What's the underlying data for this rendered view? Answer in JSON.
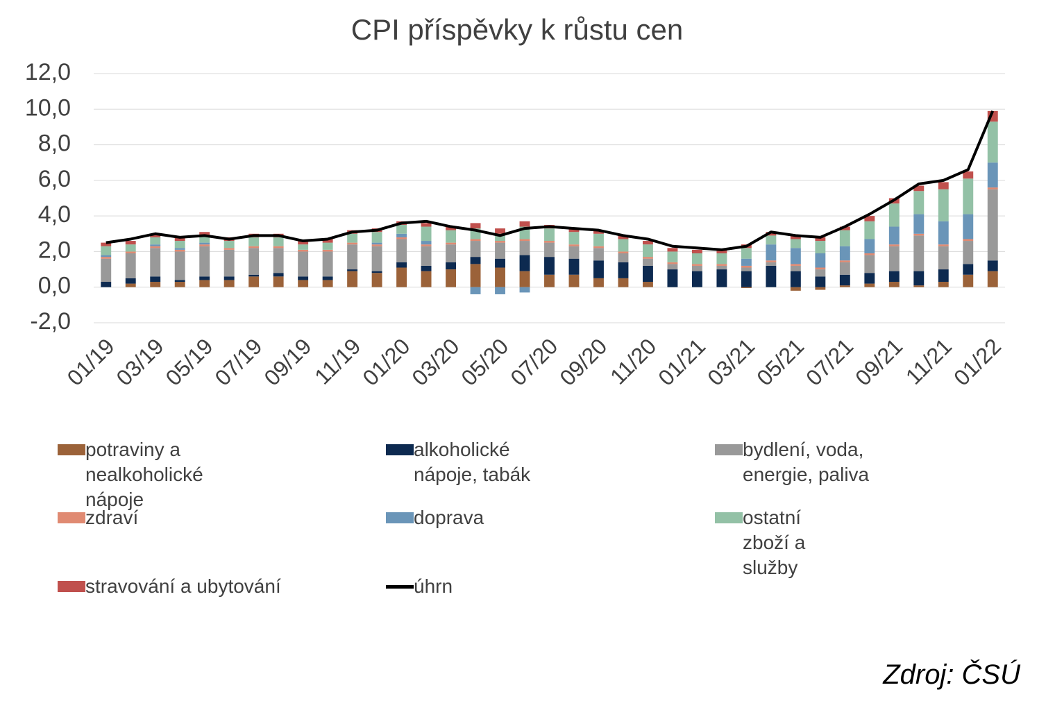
{
  "chart_data": {
    "type": "bar",
    "stacked": true,
    "title": "CPI příspěvky k růstu cen",
    "source": "Zdroj: ČSÚ",
    "categories": [
      "01/19",
      null,
      "03/19",
      null,
      "05/19",
      null,
      "07/19",
      null,
      "09/19",
      null,
      "11/19",
      null,
      "01/20",
      null,
      "03/20",
      null,
      "05/20",
      null,
      "07/20",
      null,
      "09/20",
      null,
      "11/20",
      null,
      "01/21",
      null,
      "03/21",
      null,
      "05/21",
      null,
      "07/21",
      null,
      "09/21",
      null,
      "11/21",
      null,
      "01/22"
    ],
    "ylim": [
      -2,
      12
    ],
    "yticks": [
      {
        "value": -2,
        "label": "-2,0"
      },
      {
        "value": 0,
        "label": "0,0"
      },
      {
        "value": 2,
        "label": "2,0"
      },
      {
        "value": 4,
        "label": "4,0"
      },
      {
        "value": 6,
        "label": "6,0"
      },
      {
        "value": 8,
        "label": "8,0"
      },
      {
        "value": 10,
        "label": "10,0"
      },
      {
        "value": 12,
        "label": "12,0"
      }
    ],
    "grid": true,
    "series": [
      {
        "name": "potraviny a nealkoholické nápoje",
        "color": "#9b6239",
        "values": [
          0,
          0.2,
          0.3,
          0.3,
          0.4,
          0.4,
          0.6,
          0.6,
          0.4,
          0.4,
          0.9,
          0.8,
          1.1,
          0.9,
          1.0,
          1.3,
          1.1,
          0.9,
          0.7,
          0.7,
          0.5,
          0.5,
          0.3,
          0,
          0,
          0,
          -0.05,
          0,
          -0.2,
          -0.15,
          0.1,
          0.2,
          0.3,
          0.1,
          0.3,
          0.7,
          0.9
        ]
      },
      {
        "name": "alkoholické nápoje, tabák",
        "color": "#0d2a50",
        "values": [
          0.3,
          0.3,
          0.3,
          0.1,
          0.2,
          0.2,
          0.1,
          0.2,
          0.2,
          0.2,
          0.1,
          0.1,
          0.3,
          0.3,
          0.4,
          0.4,
          0.5,
          0.9,
          1.0,
          0.9,
          1.0,
          0.9,
          0.9,
          1.0,
          0.9,
          1.0,
          0.9,
          1.2,
          0.9,
          0.6,
          0.6,
          0.6,
          0.6,
          0.8,
          0.7,
          0.6,
          0.6
        ]
      },
      {
        "name": "bydlení, voda, energie, paliva",
        "color": "#999999",
        "values": [
          1.3,
          1.4,
          1.6,
          1.6,
          1.7,
          1.5,
          1.5,
          1.4,
          1.4,
          1.4,
          1.4,
          1.4,
          1.3,
          1.1,
          1.0,
          0.9,
          0.9,
          0.8,
          0.8,
          0.7,
          0.7,
          0.5,
          0.4,
          0.3,
          0.3,
          0.2,
          0.2,
          0.2,
          0.3,
          0.4,
          0.7,
          1.0,
          1.4,
          2.0,
          1.3,
          1.3,
          4.0
        ]
      },
      {
        "name": "zdraví",
        "color": "#e08a72",
        "values": [
          0.1,
          0.1,
          0.1,
          0.1,
          0.1,
          0.1,
          0.1,
          0.1,
          0.1,
          0.1,
          0.1,
          0.1,
          0.1,
          0.1,
          0.1,
          0.1,
          0.1,
          0.1,
          0.1,
          0.1,
          0.1,
          0.1,
          0.1,
          0.1,
          0.1,
          0.1,
          0.1,
          0.1,
          0.1,
          0.1,
          0.1,
          0.1,
          0.1,
          0.1,
          0.1,
          0.1,
          0.1
        ]
      },
      {
        "name": "doprava",
        "color": "#6a95b8",
        "values": [
          0.1,
          0,
          0.1,
          0.1,
          0.1,
          0,
          0,
          0,
          0,
          0,
          0,
          0.1,
          0.2,
          0.2,
          0,
          -0.4,
          -0.4,
          -0.3,
          0,
          0,
          0,
          0,
          0,
          0,
          0,
          0,
          0.4,
          0.9,
          0.9,
          0.8,
          0.8,
          0.8,
          1.0,
          1.1,
          1.3,
          1.4,
          1.4
        ]
      },
      {
        "name": "ostatní zboží a služby",
        "color": "#93c1a6",
        "values": [
          0.5,
          0.4,
          0.4,
          0.4,
          0.4,
          0.4,
          0.5,
          0.5,
          0.3,
          0.4,
          0.5,
          0.6,
          0.5,
          0.8,
          0.7,
          0.6,
          0.4,
          0.7,
          0.7,
          0.7,
          0.7,
          0.7,
          0.7,
          0.6,
          0.6,
          0.6,
          0.6,
          0.5,
          0.5,
          0.7,
          0.9,
          1.0,
          1.3,
          1.3,
          1.8,
          2.0,
          2.3
        ]
      },
      {
        "name": "stravování a ubytování",
        "color": "#c0504d",
        "values": [
          0.2,
          0.2,
          0.2,
          0.2,
          0.2,
          0.2,
          0.2,
          0.2,
          0.2,
          0.2,
          0.2,
          0.2,
          0.2,
          0.2,
          0.2,
          0.3,
          0.3,
          0.3,
          0.2,
          0.2,
          0.2,
          0.2,
          0.2,
          0.2,
          0.2,
          0.2,
          0.2,
          0.2,
          0.2,
          0.2,
          0.2,
          0.3,
          0.3,
          0.3,
          0.4,
          0.4,
          0.6
        ]
      },
      {
        "name": "úhrn",
        "color": "#000000",
        "type": "line",
        "values": [
          2.5,
          2.7,
          3.0,
          2.8,
          2.9,
          2.7,
          2.9,
          2.9,
          2.6,
          2.7,
          3.1,
          3.2,
          3.6,
          3.7,
          3.4,
          3.2,
          2.9,
          3.3,
          3.4,
          3.3,
          3.2,
          2.9,
          2.7,
          2.3,
          2.2,
          2.1,
          2.3,
          3.1,
          2.9,
          2.8,
          3.4,
          4.1,
          4.9,
          5.8,
          6.0,
          6.6,
          9.9
        ]
      }
    ]
  }
}
